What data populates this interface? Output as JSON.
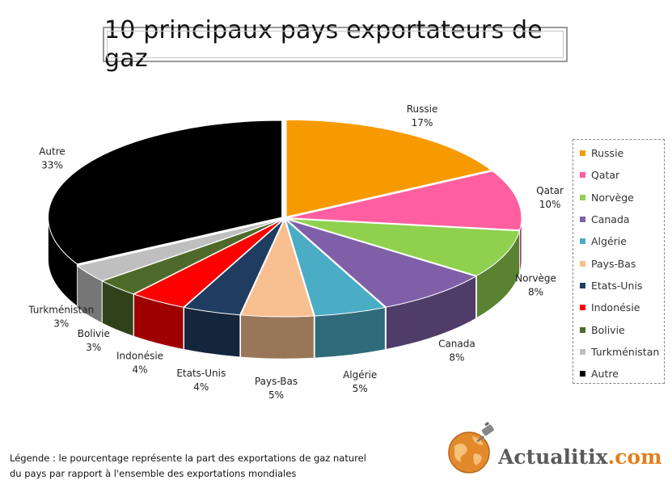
{
  "title": "10 principaux pays exportateurs de gaz",
  "chart_data": {
    "type": "pie",
    "style": "3d-exploded",
    "categories": [
      "Russie",
      "Qatar",
      "Norvège",
      "Canada",
      "Algérie",
      "Pays-Bas",
      "Etats-Unis",
      "Indonésie",
      "Bolivie",
      "Turkménistan",
      "Autre"
    ],
    "values": [
      17,
      10,
      8,
      8,
      5,
      5,
      4,
      4,
      3,
      3,
      33
    ],
    "value_labels": [
      "17%",
      "10%",
      "8%",
      "8%",
      "5%",
      "5%",
      "4%",
      "4%",
      "3%",
      "3%",
      "33%"
    ],
    "colors": [
      "#F79A00",
      "#FF5FA0",
      "#8FD14F",
      "#7F60A8",
      "#4BACC6",
      "#F8BF90",
      "#203D61",
      "#FF0000",
      "#4E6A2A",
      "#BFBFBF",
      "#000000"
    ],
    "legend_position": "right",
    "legend_entries": [
      "Russie",
      "Qatar",
      "Norvège",
      "Canada",
      "Algérie",
      "Pays-Bas",
      "Etats-Unis",
      "Indonésie",
      "Bolivie",
      "Turkménistan",
      "Autre"
    ]
  },
  "footnote": {
    "line1": "Légende : le pourcentage représente la part des exportations de gaz naturel",
    "line2": "du pays par rapport à l'ensemble des exportations mondiales"
  },
  "logo": {
    "name": "Actualitix",
    "suffix": ".com",
    "icon": "globe-plug-icon"
  }
}
